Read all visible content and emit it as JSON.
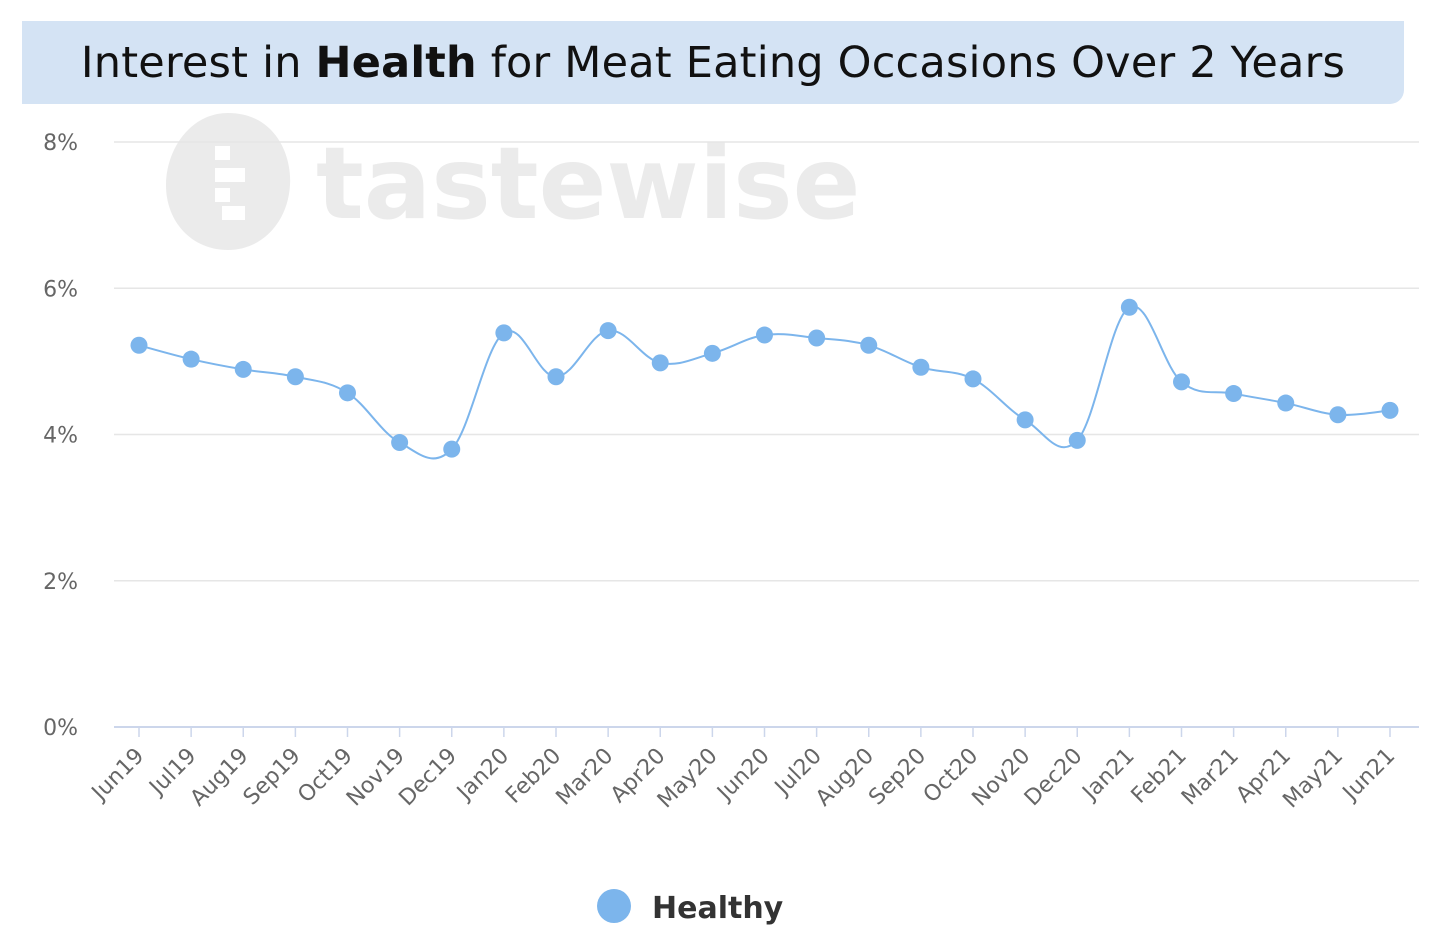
{
  "title": {
    "prefix": "Interest in ",
    "bold": "Health",
    "suffix": " for Meat Eating Occasions Over 2 Years"
  },
  "watermark": {
    "text": "tastewise",
    "icon": "tastewise-logo-icon"
  },
  "colors": {
    "series": "#7cb5ec",
    "banner": "#d4e3f4",
    "grid": "#e6e6e6"
  },
  "chart_data": {
    "type": "line",
    "title": "Interest in Health for Meat Eating Occasions Over 2 Years",
    "xlabel": "",
    "ylabel": "",
    "ylim": [
      0,
      8
    ],
    "yticks": [
      0,
      2,
      4,
      6,
      8
    ],
    "ytick_labels": [
      "0%",
      "2%",
      "4%",
      "6%",
      "8%"
    ],
    "grid": true,
    "legend": "bottom-center",
    "categories": [
      "Jun19",
      "Jul19",
      "Aug19",
      "Sep19",
      "Oct19",
      "Nov19",
      "Dec19",
      "Jan20",
      "Feb20",
      "Mar20",
      "Apr20",
      "May20",
      "Jun20",
      "Jul20",
      "Aug20",
      "Sep20",
      "Oct20",
      "Nov20",
      "Dec20",
      "Jan21",
      "Feb21",
      "Mar21",
      "Apr21",
      "May21",
      "Jun21"
    ],
    "series": [
      {
        "name": "Healthy",
        "color": "#7cb5ec",
        "values": [
          5.22,
          5.03,
          4.89,
          4.79,
          4.57,
          3.89,
          3.8,
          5.39,
          4.79,
          5.42,
          4.98,
          5.11,
          5.36,
          5.32,
          5.22,
          4.92,
          4.76,
          4.2,
          3.92,
          5.74,
          4.72,
          4.56,
          4.43,
          4.27,
          4.33
        ]
      }
    ]
  }
}
